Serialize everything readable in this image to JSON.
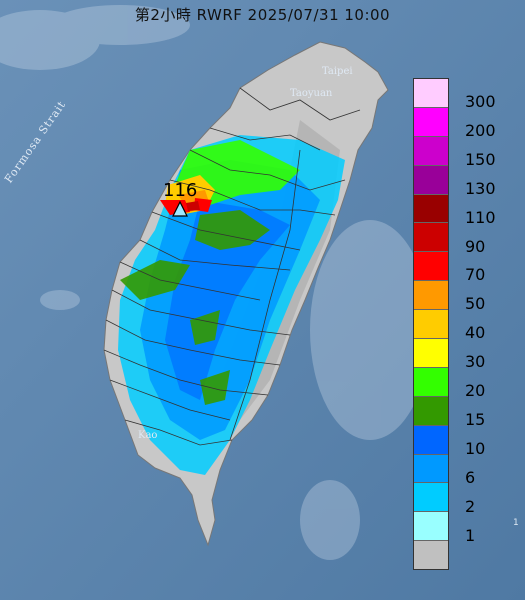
{
  "title": "第2小時  RWRF 2025/07/31 10:00",
  "map_labels": {
    "strait": "Formosa Strait",
    "taipei": "Taipei",
    "taoyuan": "Taoyuan",
    "kaohsiung": "Kao"
  },
  "max_value": "116",
  "edge_mark": "1",
  "legend": [
    {
      "label": "300",
      "color": "#ffccff"
    },
    {
      "label": "200",
      "color": "#ff00ff"
    },
    {
      "label": "150",
      "color": "#cc00cc"
    },
    {
      "label": "130",
      "color": "#990099"
    },
    {
      "label": "110",
      "color": "#990000"
    },
    {
      "label": "90",
      "color": "#cc0000"
    },
    {
      "label": "70",
      "color": "#ff0000"
    },
    {
      "label": "50",
      "color": "#ff9900"
    },
    {
      "label": "40",
      "color": "#ffcc00"
    },
    {
      "label": "30",
      "color": "#ffff00"
    },
    {
      "label": "20",
      "color": "#33ff00"
    },
    {
      "label": "15",
      "color": "#339900"
    },
    {
      "label": "10",
      "color": "#0066ff"
    },
    {
      "label": "6",
      "color": "#0099ff"
    },
    {
      "label": "2",
      "color": "#00ccff"
    },
    {
      "label": "1",
      "color": "#99ffff"
    },
    {
      "label": "",
      "color": "#c0c0c0"
    }
  ]
}
